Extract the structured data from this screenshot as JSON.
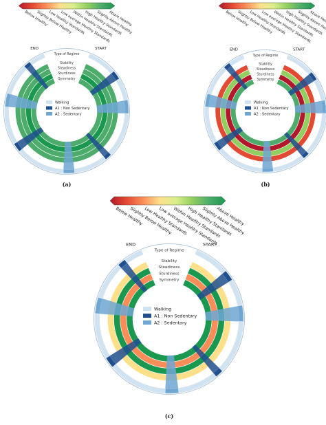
{
  "colors": {
    "scale": [
      "#b2182b",
      "#e34a33",
      "#fc8d59",
      "#fee08b",
      "#d9ef8b",
      "#91cf60",
      "#4dac6b",
      "#1a9850"
    ],
    "walking": "#cfe3f3",
    "non_sedentary": "#1f4f8f",
    "sedentary": "#6ea6d4",
    "bg_ring": "#e6f0f8",
    "outline": "#555555"
  },
  "scale_labels": [
    "Below Healthy",
    "Slightly Below Healthy",
    "Low Healthy Standards",
    "Low average Healthy Standards",
    "Within Healthy Standards",
    "High Healthy Standards",
    "Slightly Above Healthy",
    "Above Healthy"
  ],
  "ring_labels": [
    "Type of Regime",
    "Stability",
    "Steadiness",
    "Sturdiness",
    "Symmetry"
  ],
  "start_label": "START",
  "end_label": "END",
  "legend": [
    "Walking",
    "A1 : Non Sedentary",
    "A2 : Sedentary"
  ],
  "panels": [
    {
      "id": "a",
      "caption": "(a)",
      "rings": [
        6,
        6,
        7,
        6
      ],
      "regimes": [
        "walking",
        "non_sedentary",
        "walking",
        "sedentary",
        "walking",
        "non_sedentary",
        "walking",
        "sedentary",
        "walking",
        "non_sedentary",
        "walking",
        "sedentary",
        "walking",
        "non_sedentary",
        "walking"
      ]
    },
    {
      "id": "b",
      "caption": "(b)",
      "rings": [
        1,
        5,
        0,
        6
      ],
      "regimes": [
        "walking",
        "non_sedentary",
        "walking",
        "sedentary",
        "walking",
        "non_sedentary",
        "walking",
        "sedentary",
        "walking",
        "non_sedentary",
        "walking",
        "sedentary",
        "walking",
        "non_sedentary",
        "walking"
      ]
    },
    {
      "id": "c",
      "caption": "(c)",
      "rings": [
        3,
        7,
        2,
        7
      ],
      "regimes": [
        "walking",
        "non_sedentary",
        "walking",
        "sedentary",
        "walking",
        "non_sedentary",
        "walking",
        "sedentary",
        "walking",
        "non_sedentary",
        "walking",
        "sedentary",
        "walking",
        "non_sedentary",
        "walking"
      ]
    }
  ]
}
